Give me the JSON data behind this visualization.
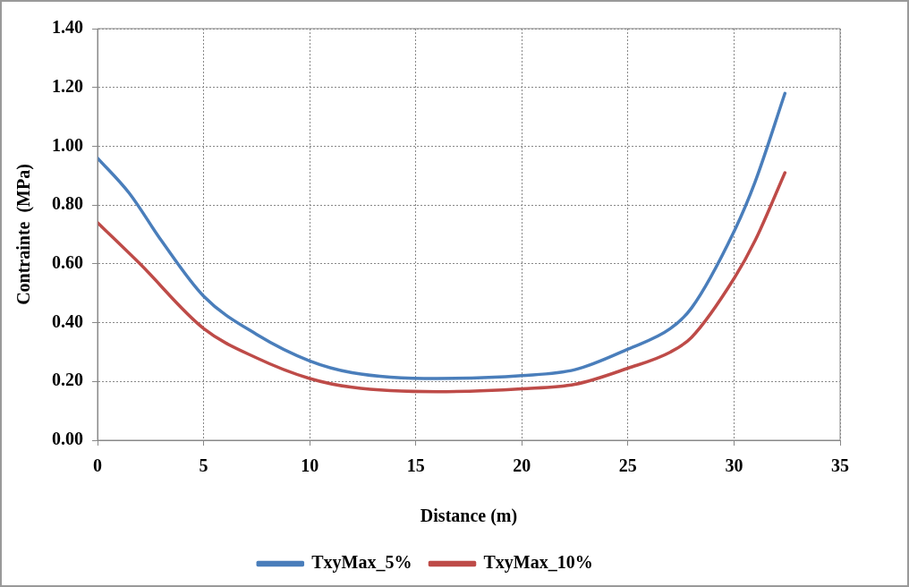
{
  "chart_data": {
    "type": "line",
    "xlabel": "Distance (m)",
    "ylabel": "Contrainte  (MPa)",
    "xlim": [
      0,
      35
    ],
    "xticks": [
      0,
      5,
      10,
      15,
      20,
      25,
      30,
      35
    ],
    "ylim": [
      0,
      1.4
    ],
    "yticks": [
      {
        "value": 0,
        "label": "0.00"
      },
      {
        "value": 0.2,
        "label": "0.20"
      },
      {
        "value": 0.4,
        "label": "0.40"
      },
      {
        "value": 0.6,
        "label": "0.60"
      },
      {
        "value": 0.8,
        "label": "0.80"
      },
      {
        "value": 1,
        "label": "1.00"
      },
      {
        "value": 1.2,
        "label": "1.20"
      },
      {
        "value": 1.4,
        "label": "1.40"
      }
    ],
    "grid": true,
    "legend": "bottom",
    "marker": "none",
    "line_style": "solid",
    "series": [
      {
        "name": "TxyMax_5%",
        "color": "#4a7ebb",
        "x": [
          0,
          1.5,
          3,
          5,
          7.5,
          10,
          12,
          16,
          20,
          22.5,
          25,
          27,
          28,
          30,
          31,
          32.4
        ],
        "values": [
          0.96,
          0.84,
          0.68,
          0.49,
          0.36,
          0.27,
          0.23,
          0.21,
          0.22,
          0.24,
          0.31,
          0.38,
          0.45,
          0.71,
          0.88,
          1.18
        ]
      },
      {
        "name": "TxyMax_10%",
        "color": "#be4b48",
        "x": [
          0,
          2,
          5,
          7.5,
          10,
          12,
          16,
          20,
          22.5,
          25,
          27,
          28,
          30,
          31,
          32.4
        ],
        "values": [
          0.74,
          0.6,
          0.38,
          0.28,
          0.21,
          0.18,
          0.165,
          0.175,
          0.19,
          0.245,
          0.3,
          0.35,
          0.55,
          0.68,
          0.91
        ]
      }
    ]
  }
}
